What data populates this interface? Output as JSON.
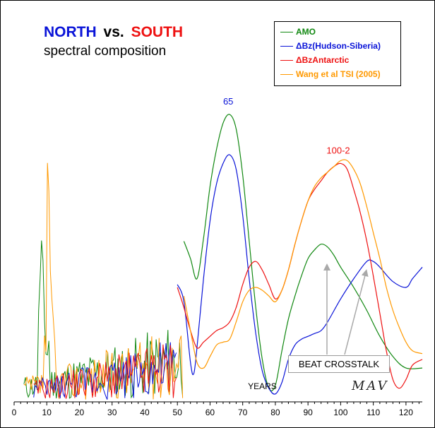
{
  "chart_data": {
    "type": "line",
    "title": {
      "north": "NORTH",
      "vs": "vs.",
      "south": "SOUTH"
    },
    "subtitle": "spectral composition",
    "xlabel": "YEARS",
    "xlim": [
      0,
      125
    ],
    "ylim": [
      0,
      1
    ],
    "grid": false,
    "legend_position": "top-right",
    "x_ticks": [
      "0",
      "10",
      "20",
      "30",
      "40",
      "50",
      "60",
      "70",
      "80",
      "90",
      "100",
      "110",
      "120"
    ],
    "colors": {
      "north": "#0a14d8",
      "south": "#ee1111"
    },
    "series": [
      {
        "name": "AMO",
        "color": "#118811",
        "points": [
          [
            52,
            0.55
          ],
          [
            54,
            0.49
          ],
          [
            56,
            0.42
          ],
          [
            58,
            0.56
          ],
          [
            60,
            0.74
          ],
          [
            62,
            0.87
          ],
          [
            64,
            0.96
          ],
          [
            66,
            0.99
          ],
          [
            68,
            0.94
          ],
          [
            70,
            0.78
          ],
          [
            72,
            0.55
          ],
          [
            74,
            0.32
          ],
          [
            76,
            0.14
          ],
          [
            78,
            0.04
          ],
          [
            80,
            0.05
          ],
          [
            82,
            0.17
          ],
          [
            84,
            0.28
          ],
          [
            86,
            0.36
          ],
          [
            88,
            0.43
          ],
          [
            90,
            0.49
          ],
          [
            92,
            0.52
          ],
          [
            94,
            0.54
          ],
          [
            96,
            0.53
          ],
          [
            98,
            0.5
          ],
          [
            100,
            0.46
          ],
          [
            104,
            0.39
          ],
          [
            108,
            0.31
          ],
          [
            112,
            0.22
          ],
          [
            116,
            0.15
          ],
          [
            120,
            0.11
          ],
          [
            125,
            0.11
          ]
        ]
      },
      {
        "name": "ΔBz(Hudson-Siberia)",
        "color": "#0a14d8",
        "points": [
          [
            50,
            0.4
          ],
          [
            52,
            0.34
          ],
          [
            54,
            0.13
          ],
          [
            55,
            0.09
          ],
          [
            56,
            0.18
          ],
          [
            58,
            0.42
          ],
          [
            60,
            0.62
          ],
          [
            62,
            0.75
          ],
          [
            64,
            0.82
          ],
          [
            66,
            0.85
          ],
          [
            68,
            0.8
          ],
          [
            70,
            0.64
          ],
          [
            72,
            0.42
          ],
          [
            74,
            0.23
          ],
          [
            76,
            0.1
          ],
          [
            78,
            0.04
          ],
          [
            80,
            0.02
          ],
          [
            82,
            0.06
          ],
          [
            84,
            0.14
          ],
          [
            86,
            0.19
          ],
          [
            88,
            0.21
          ],
          [
            90,
            0.22
          ],
          [
            92,
            0.23
          ],
          [
            94,
            0.24
          ],
          [
            96,
            0.27
          ],
          [
            100,
            0.35
          ],
          [
            104,
            0.42
          ],
          [
            108,
            0.48
          ],
          [
            110,
            0.48
          ],
          [
            112,
            0.46
          ],
          [
            116,
            0.41
          ],
          [
            120,
            0.39
          ],
          [
            122,
            0.42
          ],
          [
            125,
            0.46
          ]
        ]
      },
      {
        "name": "ΔBzAntarctic",
        "color": "#ee1111",
        "points": [
          [
            50,
            0.39
          ],
          [
            52,
            0.32
          ],
          [
            54,
            0.24
          ],
          [
            56,
            0.18
          ],
          [
            58,
            0.2
          ],
          [
            60,
            0.22
          ],
          [
            62,
            0.24
          ],
          [
            64,
            0.25
          ],
          [
            66,
            0.27
          ],
          [
            68,
            0.32
          ],
          [
            70,
            0.4
          ],
          [
            72,
            0.46
          ],
          [
            74,
            0.48
          ],
          [
            76,
            0.45
          ],
          [
            78,
            0.4
          ],
          [
            80,
            0.35
          ],
          [
            82,
            0.38
          ],
          [
            84,
            0.45
          ],
          [
            86,
            0.54
          ],
          [
            88,
            0.62
          ],
          [
            90,
            0.69
          ],
          [
            92,
            0.73
          ],
          [
            94,
            0.76
          ],
          [
            96,
            0.79
          ],
          [
            98,
            0.81
          ],
          [
            100,
            0.82
          ],
          [
            102,
            0.8
          ],
          [
            104,
            0.73
          ],
          [
            106,
            0.65
          ],
          [
            108,
            0.55
          ],
          [
            110,
            0.43
          ],
          [
            112,
            0.3
          ],
          [
            114,
            0.17
          ],
          [
            116,
            0.07
          ],
          [
            118,
            0.04
          ],
          [
            120,
            0.07
          ],
          [
            122,
            0.12
          ],
          [
            125,
            0.14
          ]
        ]
      },
      {
        "name": "Wang et al TSI (2005)",
        "color": "#ff9900",
        "points": [
          [
            52,
            0.36
          ],
          [
            54,
            0.24
          ],
          [
            56,
            0.13
          ],
          [
            58,
            0.11
          ],
          [
            60,
            0.15
          ],
          [
            62,
            0.19
          ],
          [
            64,
            0.2
          ],
          [
            66,
            0.21
          ],
          [
            68,
            0.27
          ],
          [
            70,
            0.34
          ],
          [
            72,
            0.38
          ],
          [
            74,
            0.39
          ],
          [
            76,
            0.38
          ],
          [
            78,
            0.36
          ],
          [
            80,
            0.34
          ],
          [
            82,
            0.38
          ],
          [
            84,
            0.45
          ],
          [
            86,
            0.54
          ],
          [
            88,
            0.62
          ],
          [
            90,
            0.69
          ],
          [
            92,
            0.74
          ],
          [
            94,
            0.77
          ],
          [
            96,
            0.79
          ],
          [
            98,
            0.81
          ],
          [
            100,
            0.83
          ],
          [
            102,
            0.83
          ],
          [
            104,
            0.8
          ],
          [
            106,
            0.75
          ],
          [
            108,
            0.67
          ],
          [
            110,
            0.58
          ],
          [
            112,
            0.49
          ],
          [
            114,
            0.39
          ],
          [
            116,
            0.31
          ],
          [
            118,
            0.25
          ],
          [
            120,
            0.2
          ],
          [
            122,
            0.17
          ],
          [
            125,
            0.16
          ]
        ]
      }
    ],
    "annotations": [
      {
        "text": "65",
        "x": 66,
        "y": 0.99,
        "color": "#0a14d8"
      },
      {
        "text": "100-2",
        "x": 101,
        "y": 0.82,
        "color": "#ee1111"
      },
      {
        "text": "BEAT CROSSTALK",
        "color": "#000000"
      }
    ],
    "signature": "MAV"
  }
}
